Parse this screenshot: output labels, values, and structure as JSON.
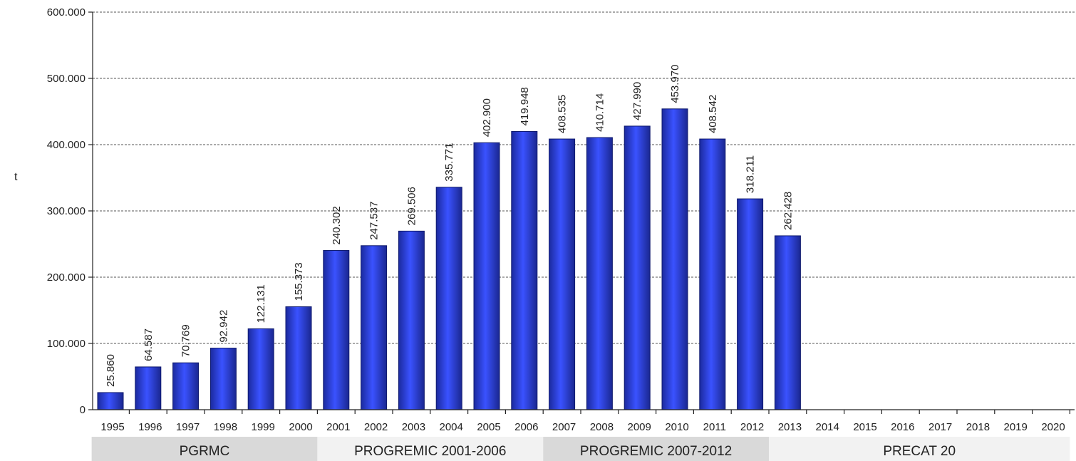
{
  "chart_data": {
    "type": "bar",
    "title": "",
    "xlabel": "",
    "ylabel": "t",
    "ylim": [
      0,
      600000
    ],
    "y_ticks": [
      0,
      100000,
      200000,
      300000,
      400000,
      500000,
      600000
    ],
    "y_tick_labels": [
      "0",
      "100.000",
      "200.000",
      "300.000",
      "400.000",
      "500.000",
      "600.000"
    ],
    "grid": "horizontal dashed",
    "legend": "none",
    "bar_color": "#2b3fd6",
    "categories": [
      "1995",
      "1996",
      "1997",
      "1998",
      "1999",
      "2000",
      "2001",
      "2002",
      "2003",
      "2004",
      "2005",
      "2006",
      "2007",
      "2008",
      "2009",
      "2010",
      "2011",
      "2012",
      "2013",
      "2014",
      "2015",
      "2016",
      "2017",
      "2018",
      "2019",
      "2020"
    ],
    "values": [
      25860,
      64587,
      70769,
      92942,
      122131,
      155373,
      240302,
      247537,
      269506,
      335771,
      402900,
      419948,
      408535,
      410714,
      427990,
      453970,
      408542,
      318211,
      262428,
      null,
      null,
      null,
      null,
      null,
      null,
      null
    ],
    "value_labels": [
      "25.860",
      "64.587",
      "70.769",
      "92.942",
      "122.131",
      "155.373",
      "240.302",
      "247.537",
      "269.506",
      "335.771",
      "402.900",
      "419.948",
      "408.535",
      "410.714",
      "427.990",
      "453.970",
      "408.542",
      "318.211",
      "262.428",
      "",
      "",
      "",
      "",
      "",
      "",
      ""
    ],
    "periods": [
      {
        "label": "PGRMC",
        "from": "1995",
        "to": "2000",
        "color": "#d9d9d9"
      },
      {
        "label": "PROGREMIC 2001-2006",
        "from": "2001",
        "to": "2006",
        "color": "#f2f2f2"
      },
      {
        "label": "PROGREMIC 2007-2012",
        "from": "2007",
        "to": "2012",
        "color": "#d9d9d9"
      },
      {
        "label": "PRECAT 20",
        "from": "2013",
        "to": "2020",
        "color": "#f2f2f2"
      }
    ]
  }
}
